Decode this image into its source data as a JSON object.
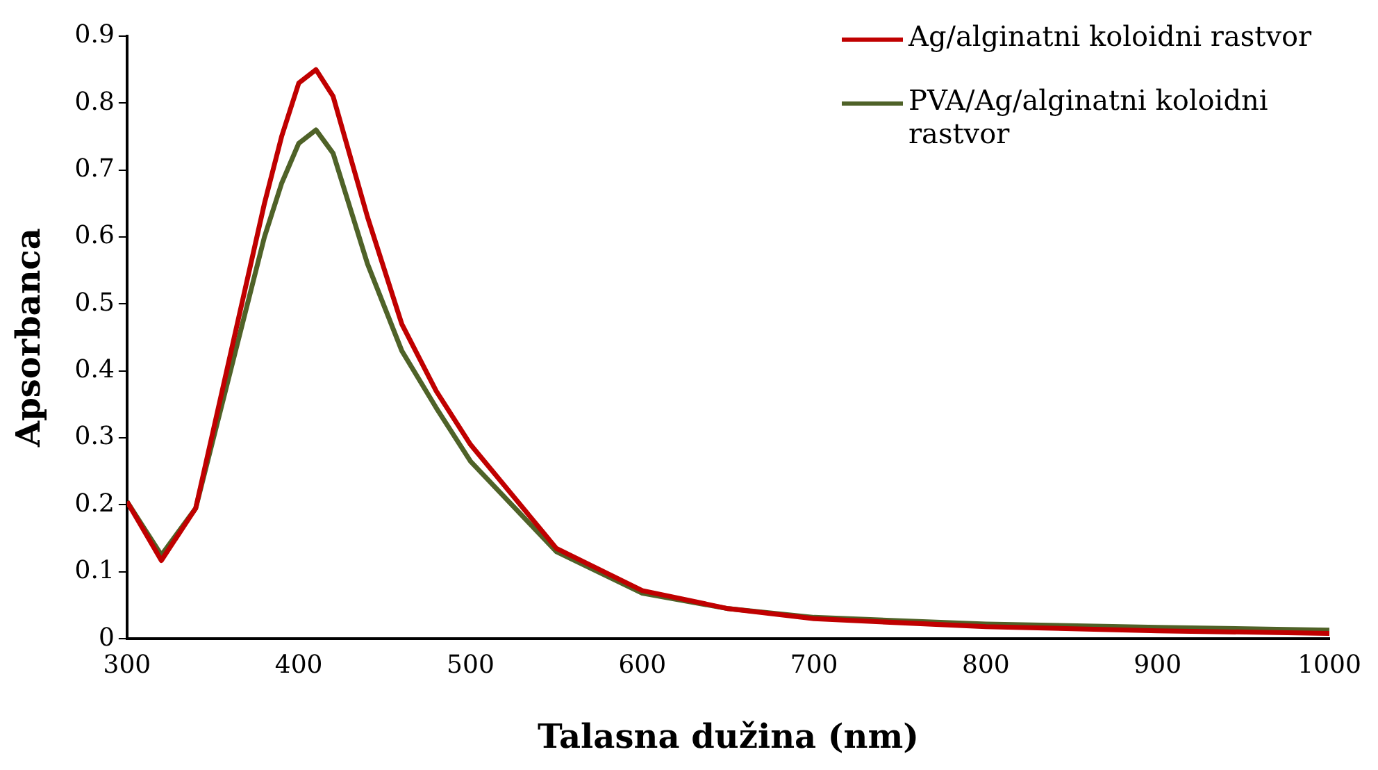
{
  "chart_data": {
    "type": "line",
    "xlabel": "Talasna dužina (nm)",
    "ylabel": "Apsorbanca",
    "xlim": [
      300,
      1000
    ],
    "xticks": [
      300,
      400,
      500,
      600,
      700,
      800,
      900,
      1000
    ],
    "ylim": [
      0,
      0.9
    ],
    "yticks": [
      0,
      0.1,
      0.2,
      0.3,
      0.4,
      0.5,
      0.6,
      0.7,
      0.8,
      0.9
    ],
    "grid": false,
    "legend": "top right",
    "marker": "none",
    "line_style": "solid",
    "series": [
      {
        "name": "Ag/alginatni koloidni rastvor",
        "color": "#c00000",
        "x": [
          300,
          320,
          340,
          380,
          390,
          400,
          410,
          420,
          440,
          460,
          480,
          500,
          550,
          600,
          650,
          700,
          800,
          900,
          1000
        ],
        "values": [
          0.205,
          0.117,
          0.195,
          0.65,
          0.75,
          0.83,
          0.85,
          0.81,
          0.63,
          0.47,
          0.37,
          0.29,
          0.135,
          0.072,
          0.045,
          0.03,
          0.018,
          0.012,
          0.008
        ]
      },
      {
        "name": "PVA/Ag/alginatni koloidni rastvor",
        "color": "#4f6228",
        "x": [
          300,
          320,
          340,
          380,
          390,
          400,
          410,
          420,
          440,
          460,
          480,
          500,
          550,
          600,
          650,
          700,
          800,
          900,
          1000
        ],
        "values": [
          0.205,
          0.125,
          0.195,
          0.6,
          0.68,
          0.74,
          0.76,
          0.725,
          0.56,
          0.43,
          0.345,
          0.265,
          0.13,
          0.068,
          0.045,
          0.032,
          0.022,
          0.017,
          0.013
        ]
      }
    ]
  }
}
